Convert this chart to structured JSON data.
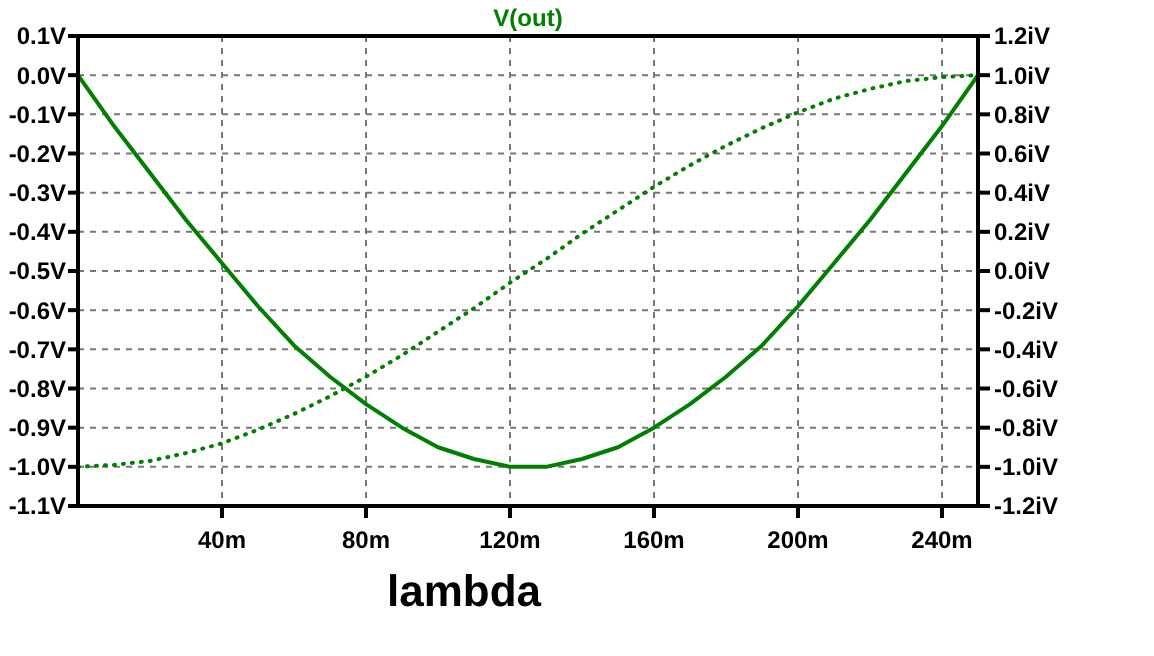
{
  "chart_data": {
    "type": "line",
    "title": "V(out)",
    "xlabel": "lambda",
    "x": [
      0,
      10,
      20,
      30,
      40,
      50,
      60,
      70,
      80,
      90,
      100,
      110,
      120,
      130,
      140,
      150,
      160,
      170,
      180,
      190,
      200,
      210,
      220,
      230,
      240,
      250
    ],
    "series": [
      {
        "color": "#007f00",
        "line_style": "solid",
        "values": [
          0,
          -0.13,
          -0.25,
          -0.37,
          -0.48,
          -0.59,
          -0.69,
          -0.77,
          -0.84,
          -0.9,
          -0.95,
          -0.98,
          -1,
          -1,
          -0.98,
          -0.95,
          -0.9,
          -0.84,
          -0.77,
          -0.69,
          -0.59,
          -0.48,
          -0.37,
          -0.25,
          -0.13,
          0
        ]
      },
      {
        "color": "#007f00",
        "line_style": "dotted",
        "axis": "y2",
        "values": [
          -1,
          -0.99,
          -0.97,
          -0.93,
          -0.88,
          -0.81,
          -0.73,
          -0.64,
          -0.54,
          -0.43,
          -0.31,
          -0.19,
          -0.06,
          0.06,
          0.19,
          0.31,
          0.43,
          0.54,
          0.64,
          0.73,
          0.81,
          0.88,
          0.93,
          0.97,
          0.99,
          1
        ]
      }
    ],
    "xlim": [
      0,
      250
    ],
    "xticks": [
      {
        "value": 40,
        "label": "40m"
      },
      {
        "value": 80,
        "label": "80m"
      },
      {
        "value": 120,
        "label": "120m"
      },
      {
        "value": 160,
        "label": "160m"
      },
      {
        "value": 200,
        "label": "200m"
      },
      {
        "value": 240,
        "label": "240m"
      }
    ],
    "ylim": [
      -1.1,
      0.1
    ],
    "yticks": [
      {
        "value": 0.1,
        "label": "0.1V"
      },
      {
        "value": 0,
        "label": "0.0V"
      },
      {
        "value": -0.1,
        "label": "-0.1V"
      },
      {
        "value": -0.2,
        "label": "-0.2V"
      },
      {
        "value": -0.3,
        "label": "-0.3V"
      },
      {
        "value": -0.4,
        "label": "-0.4V"
      },
      {
        "value": -0.5,
        "label": "-0.5V"
      },
      {
        "value": -0.6,
        "label": "-0.6V"
      },
      {
        "value": -0.7,
        "label": "-0.7V"
      },
      {
        "value": -0.8,
        "label": "-0.8V"
      },
      {
        "value": -0.9,
        "label": "-0.9V"
      },
      {
        "value": -1,
        "label": "-1.0V"
      },
      {
        "value": -1.1,
        "label": "-1.1V"
      }
    ],
    "y2lim": [
      -1.2,
      1.2
    ],
    "y2ticks": [
      {
        "value": 1.2,
        "label": "1.2iV"
      },
      {
        "value": 1,
        "label": "1.0iV"
      },
      {
        "value": 0.8,
        "label": "0.8iV"
      },
      {
        "value": 0.6,
        "label": "0.6iV"
      },
      {
        "value": 0.4,
        "label": "0.4iV"
      },
      {
        "value": 0.2,
        "label": "0.2iV"
      },
      {
        "value": 0,
        "label": "0.0iV"
      },
      {
        "value": -0.2,
        "label": "-0.2iV"
      },
      {
        "value": -0.4,
        "label": "-0.4iV"
      },
      {
        "value": -0.6,
        "label": "-0.6iV"
      },
      {
        "value": -0.8,
        "label": "-0.8iV"
      },
      {
        "value": -1,
        "label": "-1.0iV"
      },
      {
        "value": -1.2,
        "label": "-1.2iV"
      }
    ],
    "grid": true
  }
}
